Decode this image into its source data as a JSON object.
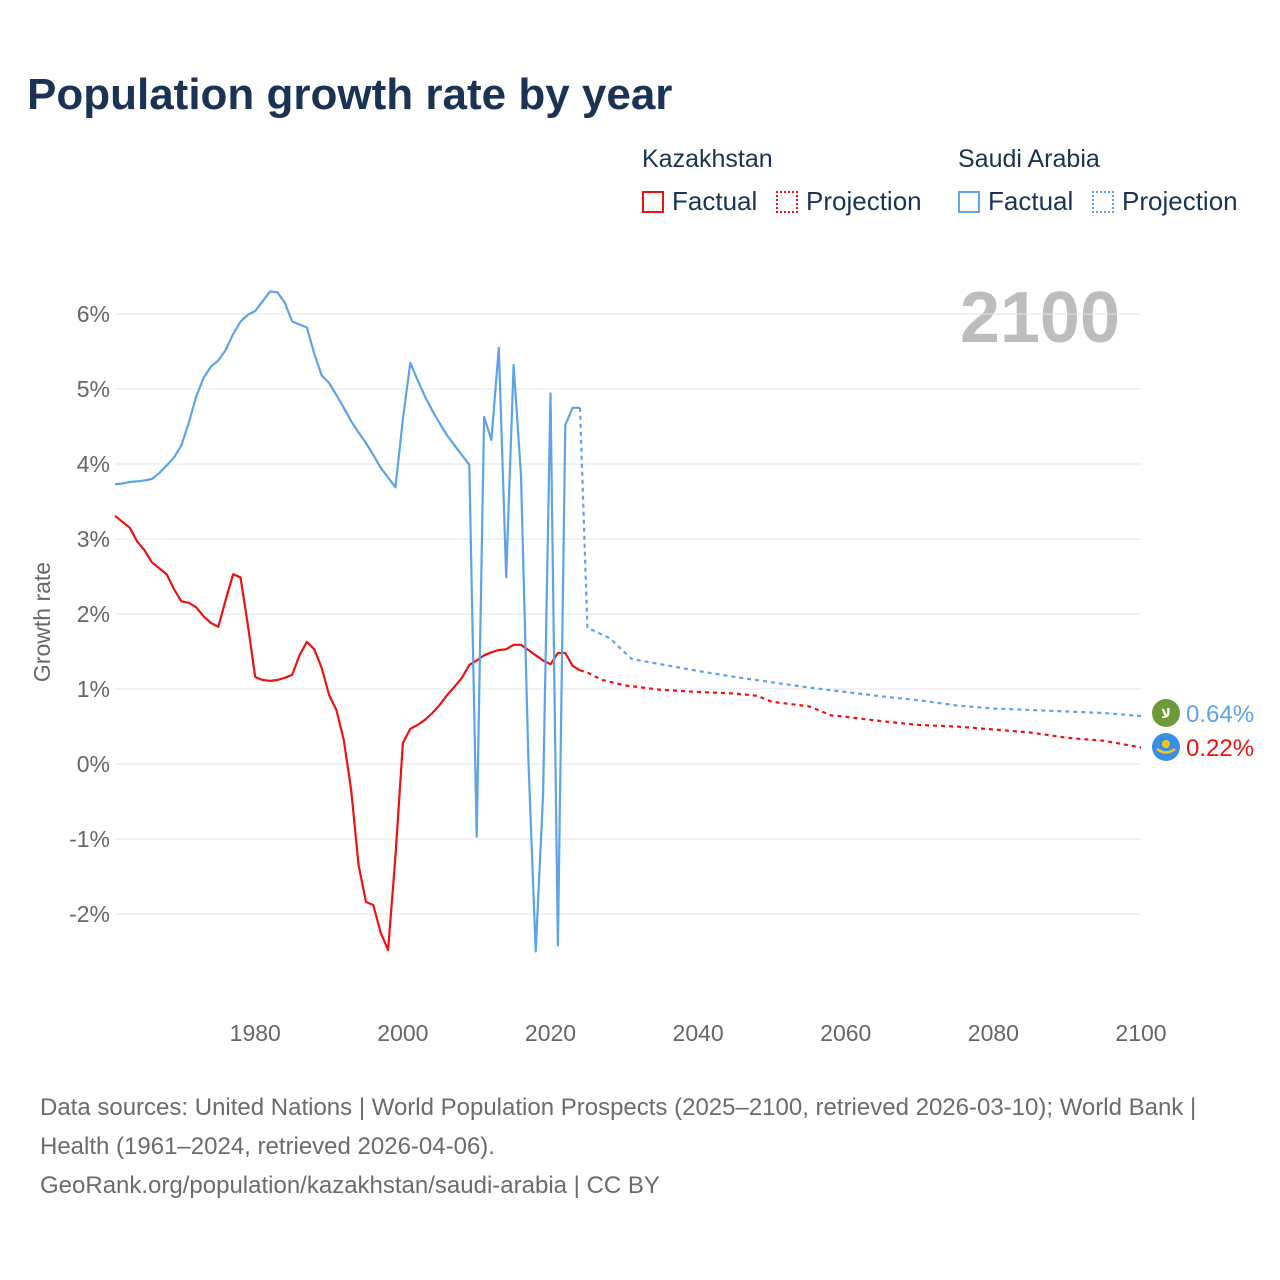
{
  "chart_data": {
    "type": "line",
    "title": "Population growth rate by year",
    "ylabel": "Growth rate",
    "xlabel": "",
    "xlim": [
      1961,
      2100
    ],
    "ylim": [
      -3.2,
      6.6
    ],
    "grid": true,
    "year_watermark": "2100",
    "x_ticks": [
      1980,
      2000,
      2020,
      2040,
      2060,
      2080,
      2100
    ],
    "x_tick_labels": [
      "1980",
      "2000",
      "2020",
      "2040",
      "2060",
      "2080",
      "2100"
    ],
    "y_ticks": [
      6,
      5,
      4,
      3,
      2,
      1,
      0,
      -1,
      -2
    ],
    "y_tick_labels": [
      "6%",
      "5%",
      "4%",
      "3%",
      "2%",
      "1%",
      "0%",
      "-1%",
      "-2%"
    ],
    "legend": {
      "placement": "top-right",
      "groups": [
        {
          "country": "Kazakhstan",
          "factual": "Factual",
          "projection": "Projection"
        },
        {
          "country": "Saudi Arabia",
          "factual": "Factual",
          "projection": "Projection"
        }
      ]
    },
    "series": [
      {
        "name": "Kazakhstan",
        "color": "#ee1111",
        "end_label": "0.22%",
        "flag": "kazakhstan-flag",
        "factual": {
          "x": [
            1961,
            1962,
            1963,
            1964,
            1965,
            1966,
            1967,
            1968,
            1969,
            1970,
            1971,
            1972,
            1973,
            1974,
            1975,
            1976,
            1977,
            1978,
            1979,
            1980,
            1981,
            1982,
            1983,
            1984,
            1985,
            1986,
            1987,
            1988,
            1989,
            1990,
            1991,
            1992,
            1993,
            1994,
            1995,
            1996,
            1997,
            1998,
            1999,
            2000,
            2001,
            2002,
            2003,
            2004,
            2005,
            2006,
            2007,
            2008,
            2009,
            2010,
            2011,
            2012,
            2013,
            2014,
            2015,
            2016,
            2017,
            2018,
            2019,
            2020,
            2021,
            2022,
            2023,
            2024
          ],
          "y": [
            3.31,
            3.23,
            3.15,
            2.97,
            2.85,
            2.69,
            2.61,
            2.53,
            2.33,
            2.17,
            2.15,
            2.09,
            1.97,
            1.88,
            1.83,
            2.19,
            2.53,
            2.49,
            1.85,
            1.16,
            1.12,
            1.11,
            1.12,
            1.15,
            1.19,
            1.45,
            1.63,
            1.53,
            1.28,
            0.92,
            0.72,
            0.32,
            -0.35,
            -1.35,
            -1.84,
            -1.88,
            -2.25,
            -2.48,
            -1.22,
            0.28,
            0.47,
            0.52,
            0.59,
            0.68,
            0.79,
            0.92,
            1.03,
            1.15,
            1.32,
            1.38,
            1.45,
            1.49,
            1.52,
            1.53,
            1.59,
            1.59,
            1.52,
            1.45,
            1.38,
            1.33,
            1.48,
            1.48,
            1.31,
            1.25
          ]
        },
        "projection": {
          "x": [
            2024,
            2025,
            2027,
            2030,
            2035,
            2040,
            2045,
            2048,
            2050,
            2055,
            2058,
            2060,
            2065,
            2070,
            2075,
            2080,
            2085,
            2090,
            2095,
            2100
          ],
          "y": [
            1.25,
            1.22,
            1.12,
            1.05,
            0.99,
            0.96,
            0.94,
            0.91,
            0.83,
            0.77,
            0.65,
            0.63,
            0.57,
            0.52,
            0.5,
            0.46,
            0.42,
            0.35,
            0.31,
            0.22
          ]
        }
      },
      {
        "name": "Saudi Arabia",
        "color": "#5ca3ea",
        "end_label": "0.64%",
        "flag": "saudi-arabia-flag",
        "factual": {
          "x": [
            1961,
            1962,
            1963,
            1964,
            1965,
            1966,
            1967,
            1968,
            1969,
            1970,
            1971,
            1972,
            1973,
            1974,
            1975,
            1976,
            1977,
            1978,
            1979,
            1980,
            1981,
            1982,
            1983,
            1984,
            1985,
            1986,
            1987,
            1988,
            1989,
            1990,
            1991,
            1992,
            1993,
            1994,
            1995,
            1996,
            1997,
            1998,
            1999,
            2000,
            2001,
            2002,
            2003,
            2004,
            2005,
            2006,
            2007,
            2008,
            2009,
            2010,
            2011,
            2012,
            2013,
            2014,
            2015,
            2016,
            2017,
            2018,
            2019,
            2020,
            2021,
            2022,
            2023,
            2024
          ],
          "y": [
            3.73,
            3.74,
            3.76,
            3.77,
            3.78,
            3.8,
            3.88,
            3.98,
            4.09,
            4.25,
            4.55,
            4.9,
            5.15,
            5.3,
            5.38,
            5.52,
            5.73,
            5.9,
            5.99,
            6.04,
            6.17,
            6.3,
            6.29,
            6.15,
            5.9,
            5.86,
            5.82,
            5.47,
            5.18,
            5.08,
            4.92,
            4.75,
            4.57,
            4.42,
            4.28,
            4.12,
            3.95,
            3.82,
            3.69,
            4.6,
            5.35,
            5.12,
            4.9,
            4.71,
            4.54,
            4.38,
            4.25,
            4.12,
            3.99,
            -0.97,
            4.63,
            4.32,
            5.55,
            2.49,
            5.32,
            3.85,
            0.05,
            -2.5,
            -0.4,
            4.94,
            -2.42,
            4.52,
            4.75,
            4.75
          ]
        },
        "projection": {
          "x": [
            2024,
            2025,
            2026,
            2028,
            2031,
            2035,
            2040,
            2045,
            2050,
            2055,
            2060,
            2065,
            2070,
            2075,
            2080,
            2085,
            2090,
            2095,
            2100
          ],
          "y": [
            4.75,
            1.82,
            1.77,
            1.68,
            1.4,
            1.33,
            1.24,
            1.16,
            1.09,
            1.02,
            0.96,
            0.9,
            0.85,
            0.78,
            0.74,
            0.72,
            0.7,
            0.68,
            0.64
          ]
        }
      }
    ]
  },
  "footer": {
    "sources": "Data sources: United Nations | World Population Prospects (2025–2100, retrieved 2026-03-10); World Bank | Health (1961–2024, retrieved 2026-04-06).",
    "credit": "GeoRank.org/population/kazakhstan/saudi-arabia | CC BY"
  }
}
